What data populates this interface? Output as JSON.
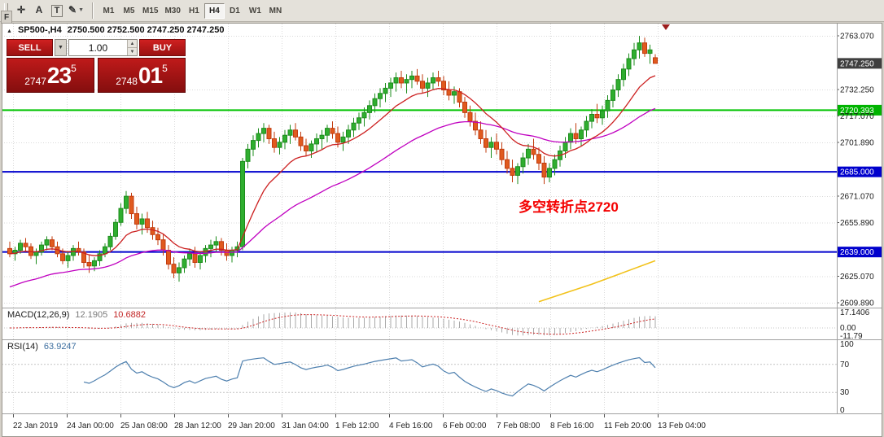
{
  "toolbar": {
    "tools": [
      {
        "id": "cursor",
        "glyph": "✛"
      },
      {
        "id": "text-label",
        "glyph": "A"
      },
      {
        "id": "text",
        "glyph": "T",
        "boxed": true
      },
      {
        "id": "drawing",
        "glyph": "✎",
        "dropdown": true
      }
    ],
    "timeframes": [
      {
        "label": "M1"
      },
      {
        "label": "M5"
      },
      {
        "label": "M15"
      },
      {
        "label": "M30"
      },
      {
        "label": "H1"
      },
      {
        "label": "H4",
        "active": true
      },
      {
        "label": "D1"
      },
      {
        "label": "W1"
      },
      {
        "label": "MN"
      }
    ]
  },
  "dock": {
    "label": "F"
  },
  "chart": {
    "symbol_title": "SP500-,H4",
    "ohlc_text": "2750.500 2752.500 2747.250 2747.250"
  },
  "trade_panel": {
    "sell_label": "SELL",
    "buy_label": "BUY",
    "volume": "1.00",
    "bid": {
      "small": "2747",
      "big": "23",
      "sup": "5"
    },
    "ask": {
      "small": "2748",
      "big": "01",
      "sup": "5"
    }
  },
  "annotation": {
    "text": "多空转折点2720"
  },
  "chart_data": {
    "type": "candlestick",
    "symbol": "SP500-",
    "timeframe": "H4",
    "ohlc_header": [
      2750.5,
      2752.5,
      2747.25,
      2747.25
    ],
    "colors": {
      "up_fill": "#2fae2f",
      "up_stroke": "#1c8c1c",
      "down_fill": "#e05a1e",
      "down_stroke": "#c23b0e",
      "grid": "#d9d9d9",
      "level_green": "#00c300",
      "level_blue": "#0000cd",
      "ma_fast": "#cc2020",
      "ma_slow": "#c000c0",
      "trendline": "#f2c21a",
      "macd_hist": "#a8a8a8",
      "macd_signal": "#cc2424",
      "rsi_line": "#4d7fae",
      "tag_current": "#3f3f3f",
      "tag_green": "#00b400",
      "tag_blue": "#0000cd"
    },
    "y_axis": [
      {
        "text": "2763.070",
        "tag": "none"
      },
      {
        "text": "2747.250",
        "tag": "current"
      },
      {
        "text": "2732.250",
        "tag": "none"
      },
      {
        "text": "2720.393",
        "tag": "green"
      },
      {
        "text": "2717.070",
        "tag": "none"
      },
      {
        "text": "2701.890",
        "tag": "none"
      },
      {
        "text": "2685.000",
        "tag": "blue"
      },
      {
        "text": "2671.070",
        "tag": "none"
      },
      {
        "text": "2655.890",
        "tag": "none"
      },
      {
        "text": "2639.000",
        "tag": "blue"
      },
      {
        "text": "2625.070",
        "tag": "none"
      },
      {
        "text": "2609.890",
        "tag": "none"
      }
    ],
    "levels": [
      {
        "price": 2720.393,
        "color": "green",
        "name": "resistance-line-2720"
      },
      {
        "price": 2685.0,
        "color": "blue",
        "name": "support-line-2685"
      },
      {
        "price": 2639.0,
        "color": "blue",
        "name": "support-line-2639"
      }
    ],
    "x_labels": [
      "22 Jan 2019",
      "24 Jan 00:00",
      "25 Jan 08:00",
      "28 Jan 12:00",
      "29 Jan 20:00",
      "31 Jan 04:00",
      "1 Feb 12:00",
      "4 Feb 16:00",
      "6 Feb 00:00",
      "7 Feb 08:00",
      "8 Feb 16:00",
      "11 Feb 20:00",
      "13 Feb 04:00"
    ],
    "ma": {
      "fast": {
        "period": 13
      },
      "slow": {
        "period": 41,
        "seed": 2618
      }
    },
    "trendline": {
      "points": [
        [
          100,
          2610.5
        ],
        [
          110,
          2620.5
        ],
        [
          122,
          2634
        ]
      ]
    },
    "macd": {
      "name": "MACD(12,26,9)",
      "value_main": "12.1905",
      "value_signal": "10.6882",
      "axis_labels": [
        "17.1406",
        "0.00",
        "-11.79"
      ],
      "params": {
        "fast": 12,
        "slow": 26,
        "signal": 9
      }
    },
    "rsi": {
      "name": "RSI(14)",
      "value": "63.9247",
      "period": 14,
      "axis_labels": [
        "100",
        "70",
        "30",
        "0"
      ],
      "levels": [
        70,
        30
      ]
    },
    "candles": [
      [
        2641,
        2645,
        2636,
        2638
      ],
      [
        2638,
        2642,
        2634,
        2640
      ],
      [
        2640,
        2646,
        2638,
        2644
      ],
      [
        2644,
        2647,
        2639,
        2642
      ],
      [
        2642,
        2644,
        2635,
        2637
      ],
      [
        2637,
        2641,
        2632,
        2639
      ],
      [
        2639,
        2645,
        2637,
        2643
      ],
      [
        2643,
        2648,
        2640,
        2646
      ],
      [
        2646,
        2648,
        2640,
        2642
      ],
      [
        2642,
        2645,
        2636,
        2638
      ],
      [
        2638,
        2641,
        2632,
        2634
      ],
      [
        2634,
        2639,
        2630,
        2637
      ],
      [
        2637,
        2643,
        2634,
        2641
      ],
      [
        2641,
        2645,
        2637,
        2639
      ],
      [
        2639,
        2641,
        2630,
        2633
      ],
      [
        2633,
        2637,
        2627,
        2631
      ],
      [
        2631,
        2636,
        2628,
        2634
      ],
      [
        2634,
        2640,
        2631,
        2638
      ],
      [
        2638,
        2644,
        2636,
        2642
      ],
      [
        2642,
        2650,
        2640,
        2648
      ],
      [
        2648,
        2658,
        2646,
        2656
      ],
      [
        2656,
        2667,
        2654,
        2664
      ],
      [
        2664,
        2674,
        2661,
        2671
      ],
      [
        2671,
        2673,
        2658,
        2661
      ],
      [
        2661,
        2665,
        2652,
        2655
      ],
      [
        2655,
        2661,
        2649,
        2658
      ],
      [
        2658,
        2662,
        2650,
        2653
      ],
      [
        2653,
        2657,
        2646,
        2649
      ],
      [
        2649,
        2653,
        2643,
        2646
      ],
      [
        2646,
        2649,
        2637,
        2640
      ],
      [
        2640,
        2643,
        2629,
        2632
      ],
      [
        2632,
        2636,
        2624,
        2627
      ],
      [
        2627,
        2633,
        2622,
        2630
      ],
      [
        2630,
        2637,
        2627,
        2635
      ],
      [
        2635,
        2641,
        2631,
        2638
      ],
      [
        2638,
        2642,
        2630,
        2633
      ],
      [
        2633,
        2639,
        2629,
        2637
      ],
      [
        2637,
        2643,
        2633,
        2641
      ],
      [
        2641,
        2646,
        2636,
        2643
      ],
      [
        2643,
        2648,
        2639,
        2645
      ],
      [
        2645,
        2647,
        2637,
        2640
      ],
      [
        2640,
        2644,
        2634,
        2637
      ],
      [
        2637,
        2642,
        2633,
        2640
      ],
      [
        2640,
        2645,
        2636,
        2642
      ],
      [
        2642,
        2693,
        2640,
        2691
      ],
      [
        2691,
        2701,
        2687,
        2698
      ],
      [
        2698,
        2706,
        2694,
        2703
      ],
      [
        2703,
        2710,
        2699,
        2707
      ],
      [
        2707,
        2713,
        2702,
        2710
      ],
      [
        2710,
        2712,
        2701,
        2704
      ],
      [
        2704,
        2708,
        2696,
        2699
      ],
      [
        2699,
        2705,
        2695,
        2702
      ],
      [
        2702,
        2709,
        2698,
        2706
      ],
      [
        2706,
        2712,
        2701,
        2709
      ],
      [
        2709,
        2713,
        2703,
        2705
      ],
      [
        2705,
        2708,
        2697,
        2700
      ],
      [
        2700,
        2704,
        2694,
        2697
      ],
      [
        2697,
        2703,
        2693,
        2701
      ],
      [
        2701,
        2707,
        2696,
        2704
      ],
      [
        2704,
        2709,
        2698,
        2706
      ],
      [
        2706,
        2712,
        2702,
        2710
      ],
      [
        2710,
        2714,
        2704,
        2707
      ],
      [
        2707,
        2711,
        2699,
        2702
      ],
      [
        2702,
        2708,
        2697,
        2705
      ],
      [
        2705,
        2712,
        2701,
        2709
      ],
      [
        2709,
        2716,
        2705,
        2713
      ],
      [
        2713,
        2719,
        2709,
        2716
      ],
      [
        2716,
        2722,
        2711,
        2719
      ],
      [
        2719,
        2726,
        2715,
        2723
      ],
      [
        2723,
        2730,
        2719,
        2727
      ],
      [
        2727,
        2733,
        2722,
        2730
      ],
      [
        2730,
        2736,
        2725,
        2733
      ],
      [
        2733,
        2739,
        2728,
        2736
      ],
      [
        2736,
        2742,
        2731,
        2739
      ],
      [
        2739,
        2743,
        2733,
        2736
      ],
      [
        2736,
        2741,
        2730,
        2738
      ],
      [
        2738,
        2743,
        2733,
        2740
      ],
      [
        2740,
        2744,
        2735,
        2737
      ],
      [
        2737,
        2741,
        2730,
        2733
      ],
      [
        2733,
        2739,
        2728,
        2736
      ],
      [
        2736,
        2742,
        2732,
        2739
      ],
      [
        2739,
        2743,
        2734,
        2737
      ],
      [
        2737,
        2740,
        2729,
        2732
      ],
      [
        2732,
        2737,
        2726,
        2729
      ],
      [
        2729,
        2734,
        2724,
        2731
      ],
      [
        2731,
        2733,
        2722,
        2725
      ],
      [
        2725,
        2728,
        2716,
        2719
      ],
      [
        2719,
        2723,
        2711,
        2714
      ],
      [
        2714,
        2719,
        2706,
        2709
      ],
      [
        2709,
        2714,
        2701,
        2704
      ],
      [
        2704,
        2709,
        2696,
        2699
      ],
      [
        2699,
        2705,
        2693,
        2702
      ],
      [
        2702,
        2707,
        2695,
        2698
      ],
      [
        2698,
        2702,
        2689,
        2692
      ],
      [
        2692,
        2697,
        2684,
        2687
      ],
      [
        2687,
        2692,
        2679,
        2683
      ],
      [
        2683,
        2690,
        2678,
        2688
      ],
      [
        2688,
        2696,
        2684,
        2693
      ],
      [
        2693,
        2701,
        2689,
        2698
      ],
      [
        2698,
        2704,
        2692,
        2695
      ],
      [
        2695,
        2699,
        2686,
        2690
      ],
      [
        2690,
        2694,
        2678,
        2682
      ],
      [
        2682,
        2690,
        2679,
        2687
      ],
      [
        2687,
        2695,
        2683,
        2692
      ],
      [
        2692,
        2700,
        2688,
        2697
      ],
      [
        2697,
        2705,
        2693,
        2702
      ],
      [
        2702,
        2710,
        2698,
        2707
      ],
      [
        2707,
        2713,
        2701,
        2704
      ],
      [
        2704,
        2711,
        2700,
        2709
      ],
      [
        2709,
        2717,
        2705,
        2714
      ],
      [
        2714,
        2721,
        2710,
        2718
      ],
      [
        2718,
        2724,
        2713,
        2716
      ],
      [
        2716,
        2723,
        2712,
        2720
      ],
      [
        2720,
        2729,
        2716,
        2726
      ],
      [
        2726,
        2735,
        2722,
        2732
      ],
      [
        2732,
        2741,
        2728,
        2738
      ],
      [
        2738,
        2747,
        2734,
        2744
      ],
      [
        2744,
        2753,
        2740,
        2750
      ],
      [
        2750,
        2759,
        2746,
        2755
      ],
      [
        2755,
        2763,
        2750,
        2759
      ],
      [
        2759,
        2762,
        2751,
        2753
      ],
      [
        2753,
        2758,
        2747,
        2755
      ],
      [
        2750.5,
        2752.5,
        2747.25,
        2747.25
      ]
    ]
  }
}
